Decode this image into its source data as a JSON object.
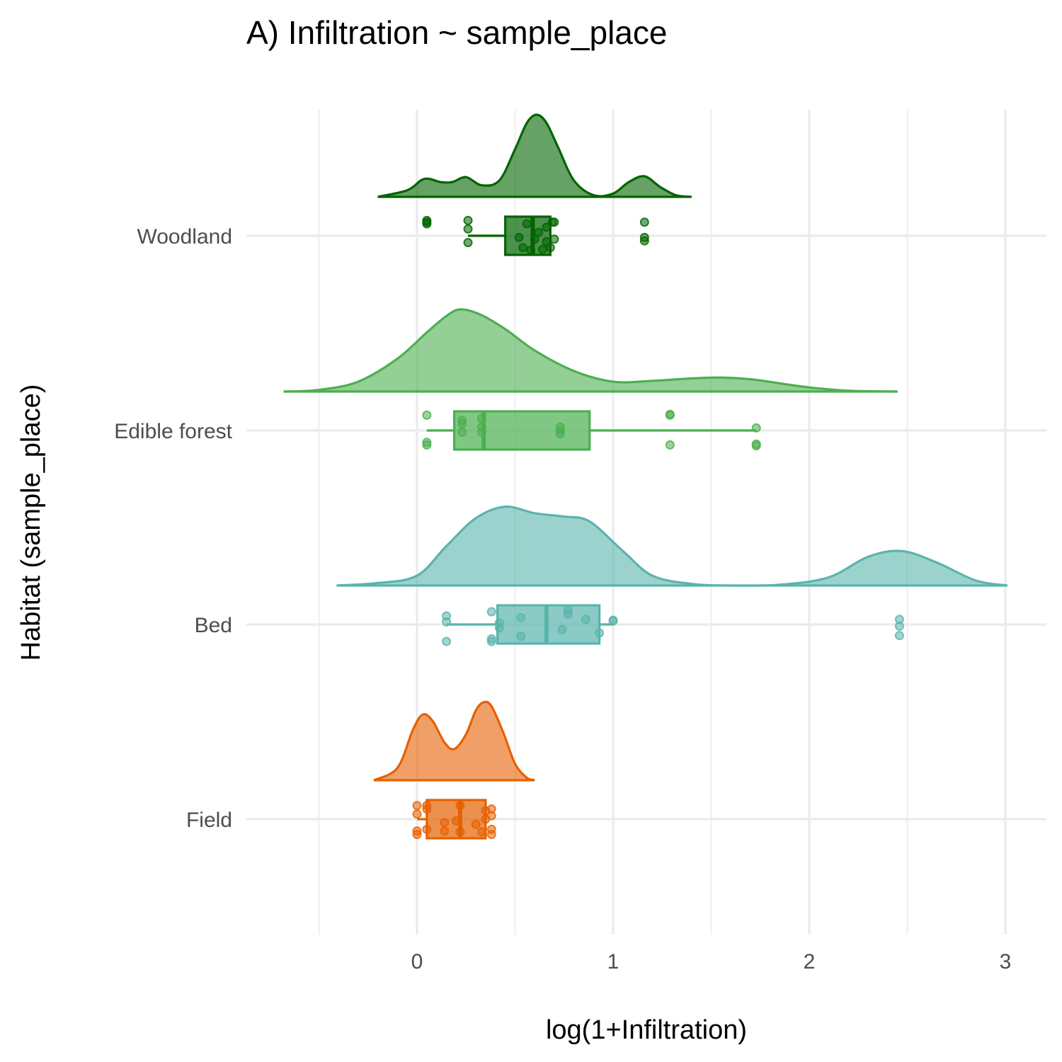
{
  "chart_data": {
    "type": "raincloud",
    "title": "A) Infiltration ~ sample_place",
    "xlabel": "log(1+Infiltration)",
    "ylabel": "Habitat (sample_place)",
    "xlim": [
      -0.5,
      3.2
    ],
    "x_ticks": [
      0,
      1,
      2,
      3
    ],
    "x_tick_labels": [
      "0",
      "1",
      "2",
      "3"
    ],
    "grid": true,
    "categories": [
      "Woodland",
      "Edible forest",
      "Bed",
      "Field"
    ],
    "series": [
      {
        "name": "Woodland",
        "color": "#006400",
        "box": {
          "min": 0.26,
          "q1": 0.45,
          "median": 0.59,
          "q3": 0.68,
          "max": 0.68
        },
        "points": [
          {
            "x": 0.05,
            "y": -0.7
          },
          {
            "x": 0.05,
            "y": -0.8
          },
          {
            "x": 0.05,
            "y": -0.9
          },
          {
            "x": 0.26,
            "y": 0.4
          },
          {
            "x": 0.26,
            "y": -0.4
          },
          {
            "x": 0.26,
            "y": -0.9
          },
          {
            "x": 0.52,
            "y": 0.1
          },
          {
            "x": 0.54,
            "y": 0.7
          },
          {
            "x": 0.56,
            "y": -0.7
          },
          {
            "x": 0.58,
            "y": 0.85
          },
          {
            "x": 0.6,
            "y": 0.2
          },
          {
            "x": 0.62,
            "y": -0.2
          },
          {
            "x": 0.64,
            "y": 0.8
          },
          {
            "x": 0.66,
            "y": -0.5
          },
          {
            "x": 0.66,
            "y": 0.35
          },
          {
            "x": 0.68,
            "y": 0.7
          },
          {
            "x": 0.69,
            "y": -0.8
          },
          {
            "x": 0.7,
            "y": 0.2
          },
          {
            "x": 0.7,
            "y": -0.8
          },
          {
            "x": 1.16,
            "y": 0.1
          },
          {
            "x": 1.16,
            "y": 0.3
          },
          {
            "x": 1.16,
            "y": -0.8
          }
        ],
        "density": [
          [
            -0.2,
            0.0
          ],
          [
            -0.05,
            0.08
          ],
          [
            0.02,
            0.2
          ],
          [
            0.06,
            0.22
          ],
          [
            0.12,
            0.18
          ],
          [
            0.18,
            0.18
          ],
          [
            0.25,
            0.24
          ],
          [
            0.33,
            0.14
          ],
          [
            0.42,
            0.2
          ],
          [
            0.5,
            0.58
          ],
          [
            0.56,
            0.9
          ],
          [
            0.61,
            1.0
          ],
          [
            0.66,
            0.9
          ],
          [
            0.72,
            0.6
          ],
          [
            0.8,
            0.2
          ],
          [
            0.9,
            0.02
          ],
          [
            1.0,
            0.04
          ],
          [
            1.08,
            0.18
          ],
          [
            1.16,
            0.25
          ],
          [
            1.24,
            0.12
          ],
          [
            1.32,
            0.02
          ],
          [
            1.4,
            0.0
          ]
        ]
      },
      {
        "name": "Edible forest",
        "color": "#4CAF50",
        "box": {
          "min": 0.05,
          "q1": 0.19,
          "median": 0.34,
          "q3": 0.88,
          "max": 1.73
        },
        "points": [
          {
            "x": 0.05,
            "y": 0.85
          },
          {
            "x": 0.05,
            "y": 0.7
          },
          {
            "x": 0.05,
            "y": -0.9
          },
          {
            "x": 0.23,
            "y": 0.1
          },
          {
            "x": 0.23,
            "y": -0.4
          },
          {
            "x": 0.23,
            "y": -0.6
          },
          {
            "x": 0.33,
            "y": 0.1
          },
          {
            "x": 0.33,
            "y": -0.2
          },
          {
            "x": 0.33,
            "y": -0.7
          },
          {
            "x": 0.73,
            "y": 0.2
          },
          {
            "x": 0.73,
            "y": 0.0
          },
          {
            "x": 0.73,
            "y": -0.2
          },
          {
            "x": 1.29,
            "y": 0.85
          },
          {
            "x": 1.29,
            "y": -0.9
          },
          {
            "x": 1.29,
            "y": -0.95
          },
          {
            "x": 1.73,
            "y": 0.9
          },
          {
            "x": 1.73,
            "y": 0.8
          },
          {
            "x": 1.73,
            "y": -0.15
          }
        ],
        "density": [
          [
            -0.68,
            0.0
          ],
          [
            -0.5,
            0.02
          ],
          [
            -0.3,
            0.12
          ],
          [
            -0.1,
            0.4
          ],
          [
            0.05,
            0.72
          ],
          [
            0.15,
            0.92
          ],
          [
            0.22,
            1.0
          ],
          [
            0.32,
            0.94
          ],
          [
            0.45,
            0.76
          ],
          [
            0.6,
            0.5
          ],
          [
            0.8,
            0.25
          ],
          [
            1.0,
            0.12
          ],
          [
            1.2,
            0.13
          ],
          [
            1.4,
            0.16
          ],
          [
            1.55,
            0.17
          ],
          [
            1.7,
            0.15
          ],
          [
            1.85,
            0.1
          ],
          [
            2.0,
            0.05
          ],
          [
            2.2,
            0.01
          ],
          [
            2.45,
            0.0
          ]
        ]
      },
      {
        "name": "Bed",
        "color": "#5AB4AC",
        "box": {
          "min": 0.15,
          "q1": 0.41,
          "median": 0.66,
          "q3": 0.93,
          "max": 1.0
        },
        "points": [
          {
            "x": 0.15,
            "y": 1.0
          },
          {
            "x": 0.15,
            "y": -0.15
          },
          {
            "x": 0.15,
            "y": -0.5
          },
          {
            "x": 0.38,
            "y": 1.0
          },
          {
            "x": 0.38,
            "y": 0.85
          },
          {
            "x": 0.38,
            "y": -0.75
          },
          {
            "x": 0.42,
            "y": 0.2
          },
          {
            "x": 0.42,
            "y": -0.1
          },
          {
            "x": 0.53,
            "y": 0.7
          },
          {
            "x": 0.53,
            "y": -0.4
          },
          {
            "x": 0.74,
            "y": 0.3
          },
          {
            "x": 0.77,
            "y": -0.6
          },
          {
            "x": 0.77,
            "y": -0.85
          },
          {
            "x": 0.86,
            "y": -0.3
          },
          {
            "x": 0.93,
            "y": 0.5
          },
          {
            "x": 1.0,
            "y": -0.2
          },
          {
            "x": 1.0,
            "y": -0.25
          },
          {
            "x": 2.46,
            "y": 0.65
          },
          {
            "x": 2.46,
            "y": 0.1
          },
          {
            "x": 2.46,
            "y": -0.3
          }
        ],
        "density": [
          [
            -0.41,
            0.0
          ],
          [
            -0.2,
            0.03
          ],
          [
            0.0,
            0.12
          ],
          [
            0.15,
            0.48
          ],
          [
            0.3,
            0.82
          ],
          [
            0.45,
            0.96
          ],
          [
            0.6,
            0.88
          ],
          [
            0.75,
            0.84
          ],
          [
            0.88,
            0.78
          ],
          [
            1.05,
            0.42
          ],
          [
            1.2,
            0.12
          ],
          [
            1.4,
            0.02
          ],
          [
            1.6,
            0.0
          ],
          [
            1.85,
            0.01
          ],
          [
            2.1,
            0.1
          ],
          [
            2.3,
            0.35
          ],
          [
            2.47,
            0.42
          ],
          [
            2.65,
            0.28
          ],
          [
            2.85,
            0.06
          ],
          [
            3.01,
            0.0
          ]
        ]
      },
      {
        "name": "Field",
        "color": "#E66101",
        "box": {
          "min": 0.0,
          "q1": 0.05,
          "median": 0.22,
          "q3": 0.35,
          "max": 0.35
        },
        "points": [
          {
            "x": 0.0,
            "y": 0.9
          },
          {
            "x": 0.0,
            "y": 0.7
          },
          {
            "x": 0.0,
            "y": -0.3
          },
          {
            "x": 0.0,
            "y": -0.8
          },
          {
            "x": 0.05,
            "y": 0.6
          },
          {
            "x": 0.05,
            "y": -0.6
          },
          {
            "x": 0.05,
            "y": -0.8
          },
          {
            "x": 0.14,
            "y": 0.7
          },
          {
            "x": 0.14,
            "y": 0.2
          },
          {
            "x": 0.2,
            "y": 0.1
          },
          {
            "x": 0.22,
            "y": -0.8
          },
          {
            "x": 0.22,
            "y": 0.75
          },
          {
            "x": 0.3,
            "y": 0.3
          },
          {
            "x": 0.33,
            "y": 0.75
          },
          {
            "x": 0.35,
            "y": 0.0
          },
          {
            "x": 0.35,
            "y": -0.5
          },
          {
            "x": 0.38,
            "y": 0.9
          },
          {
            "x": 0.38,
            "y": 0.6
          },
          {
            "x": 0.38,
            "y": -0.2
          },
          {
            "x": 0.38,
            "y": -0.6
          }
        ],
        "density": [
          [
            -0.22,
            0.0
          ],
          [
            -0.1,
            0.15
          ],
          [
            -0.02,
            0.62
          ],
          [
            0.03,
            0.8
          ],
          [
            0.08,
            0.72
          ],
          [
            0.14,
            0.46
          ],
          [
            0.19,
            0.38
          ],
          [
            0.25,
            0.56
          ],
          [
            0.3,
            0.85
          ],
          [
            0.34,
            0.95
          ],
          [
            0.38,
            0.9
          ],
          [
            0.44,
            0.58
          ],
          [
            0.5,
            0.2
          ],
          [
            0.56,
            0.03
          ],
          [
            0.6,
            0.0
          ]
        ]
      }
    ]
  }
}
